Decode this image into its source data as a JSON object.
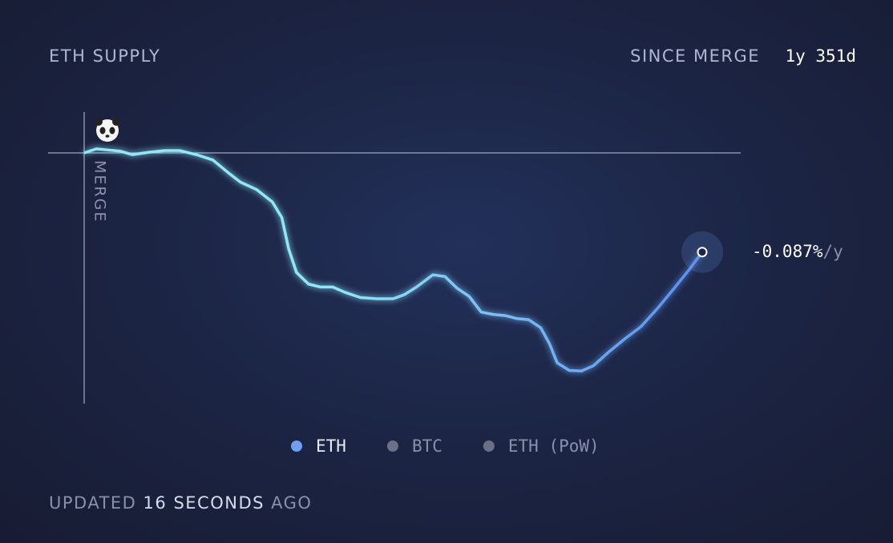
{
  "header": {
    "title": "ETH SUPPLY",
    "period_label": "SINCE MERGE",
    "period_value": "1y 351d"
  },
  "chart_data": {
    "type": "line",
    "marker_label": "MERGE",
    "rate_label": "-0.087%",
    "rate_unit": "/y",
    "x": [
      0,
      14,
      28,
      42,
      56,
      74,
      93,
      111,
      130,
      149,
      167,
      181,
      200,
      218,
      229,
      237,
      246,
      260,
      274,
      288,
      302,
      320,
      339,
      358,
      371,
      385,
      404,
      418,
      432,
      446,
      460,
      474,
      488,
      501,
      515,
      529,
      539,
      548,
      562,
      576,
      590,
      608,
      627,
      645,
      664,
      683,
      701,
      716
    ],
    "series": [
      {
        "name": "ETH",
        "color": "#6fa0f0",
        "gradient": [
          "#8ee8f8",
          "#5b8ef0"
        ],
        "values": [
          0,
          0.007,
          0.005,
          0.003,
          -0.003,
          0.001,
          0.004,
          0.004,
          -0.003,
          -0.012,
          -0.034,
          -0.05,
          -0.063,
          -0.084,
          -0.111,
          -0.165,
          -0.205,
          -0.225,
          -0.23,
          -0.23,
          -0.239,
          -0.248,
          -0.25,
          -0.25,
          -0.243,
          -0.23,
          -0.209,
          -0.212,
          -0.232,
          -0.246,
          -0.273,
          -0.277,
          -0.279,
          -0.284,
          -0.286,
          -0.3,
          -0.327,
          -0.36,
          -0.373,
          -0.374,
          -0.365,
          -0.341,
          -0.318,
          -0.298,
          -0.267,
          -0.233,
          -0.2,
          -0.17
        ]
      }
    ],
    "inactive_series": [
      {
        "name": "BTC",
        "color": "#6b7088"
      },
      {
        "name": "ETH (PoW)",
        "color": "#6b7088"
      }
    ],
    "xlim": [
      0,
      716
    ],
    "ylim": [
      -0.43,
      0.07
    ]
  },
  "footer": {
    "prefix": "UPDATED",
    "count": 16,
    "unit": "SECONDS",
    "suffix": "AGO"
  }
}
